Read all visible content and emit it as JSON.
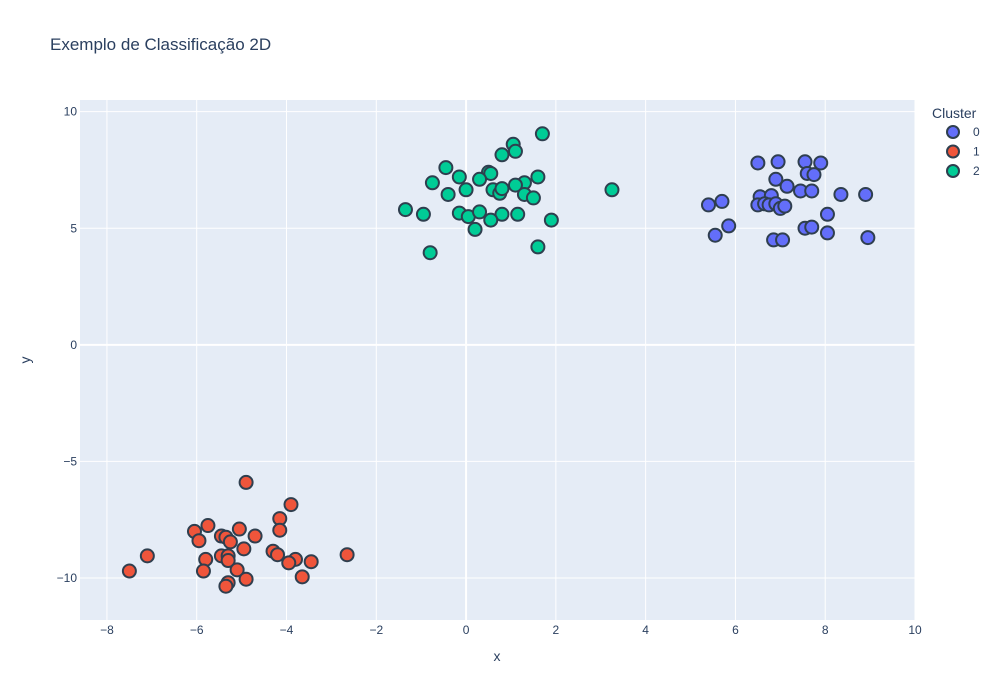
{
  "chart_data": {
    "type": "scatter",
    "title": "Exemplo de Classificação 2D",
    "xlabel": "x",
    "ylabel": "y",
    "xlim": [
      -8.6,
      10
    ],
    "ylim": [
      -11.8,
      10.5
    ],
    "xticks": [
      -8,
      -6,
      -4,
      -2,
      0,
      2,
      4,
      6,
      8,
      10
    ],
    "yticks": [
      -10,
      -5,
      0,
      5,
      10
    ],
    "xtick_labels": [
      "−8",
      "−6",
      "−4",
      "−2",
      "0",
      "2",
      "4",
      "6",
      "8",
      "10"
    ],
    "ytick_labels": [
      "−10",
      "−5",
      "0",
      "5",
      "10"
    ],
    "grid": true,
    "legend": {
      "title": "Cluster",
      "placement": "top-right"
    },
    "series": [
      {
        "name": "0",
        "color": "#636efa",
        "points": [
          [
            6.5,
            7.8
          ],
          [
            6.95,
            7.85
          ],
          [
            7.55,
            7.85
          ],
          [
            7.9,
            7.8
          ],
          [
            7.6,
            7.35
          ],
          [
            7.75,
            7.3
          ],
          [
            6.9,
            7.1
          ],
          [
            7.15,
            6.8
          ],
          [
            7.45,
            6.6
          ],
          [
            7.7,
            6.6
          ],
          [
            6.55,
            6.35
          ],
          [
            6.8,
            6.4
          ],
          [
            8.35,
            6.45
          ],
          [
            8.9,
            6.45
          ],
          [
            5.4,
            6.0
          ],
          [
            5.7,
            6.15
          ],
          [
            6.5,
            6.0
          ],
          [
            6.65,
            6.05
          ],
          [
            6.75,
            6.0
          ],
          [
            6.9,
            6.05
          ],
          [
            7.0,
            5.85
          ],
          [
            7.1,
            5.95
          ],
          [
            8.05,
            5.6
          ],
          [
            5.85,
            5.1
          ],
          [
            7.55,
            5.0
          ],
          [
            7.7,
            5.05
          ],
          [
            5.55,
            4.7
          ],
          [
            8.05,
            4.8
          ],
          [
            6.85,
            4.5
          ],
          [
            7.05,
            4.5
          ],
          [
            8.95,
            4.6
          ]
        ]
      },
      {
        "name": "1",
        "color": "#ef553b",
        "points": [
          [
            -4.9,
            -5.9
          ],
          [
            -3.9,
            -6.85
          ],
          [
            -4.15,
            -7.45
          ],
          [
            -6.05,
            -8.0
          ],
          [
            -5.75,
            -7.75
          ],
          [
            -5.05,
            -7.9
          ],
          [
            -4.15,
            -7.95
          ],
          [
            -5.95,
            -8.4
          ],
          [
            -5.45,
            -8.2
          ],
          [
            -5.35,
            -8.25
          ],
          [
            -5.25,
            -8.45
          ],
          [
            -4.7,
            -8.2
          ],
          [
            -4.95,
            -8.75
          ],
          [
            -4.3,
            -8.85
          ],
          [
            -4.2,
            -9.0
          ],
          [
            -5.45,
            -9.05
          ],
          [
            -5.3,
            -9.05
          ],
          [
            -5.8,
            -9.2
          ],
          [
            -5.3,
            -9.25
          ],
          [
            -3.8,
            -9.2
          ],
          [
            -3.95,
            -9.35
          ],
          [
            -3.45,
            -9.3
          ],
          [
            -2.65,
            -9.0
          ],
          [
            -7.1,
            -9.05
          ],
          [
            -7.5,
            -9.7
          ],
          [
            -5.85,
            -9.7
          ],
          [
            -5.1,
            -9.65
          ],
          [
            -4.9,
            -10.05
          ],
          [
            -3.65,
            -9.95
          ],
          [
            -5.3,
            -10.2
          ],
          [
            -5.35,
            -10.35
          ]
        ]
      },
      {
        "name": "2",
        "color": "#00cc96",
        "points": [
          [
            1.7,
            9.05
          ],
          [
            1.05,
            8.6
          ],
          [
            1.1,
            8.3
          ],
          [
            0.8,
            8.15
          ],
          [
            -0.45,
            7.6
          ],
          [
            0.5,
            7.4
          ],
          [
            0.55,
            7.35
          ],
          [
            -0.15,
            7.2
          ],
          [
            0.3,
            7.1
          ],
          [
            1.6,
            7.2
          ],
          [
            -0.75,
            6.95
          ],
          [
            1.3,
            6.95
          ],
          [
            1.1,
            6.85
          ],
          [
            0.6,
            6.65
          ],
          [
            0.0,
            6.65
          ],
          [
            0.75,
            6.5
          ],
          [
            0.8,
            6.7
          ],
          [
            -0.4,
            6.45
          ],
          [
            1.3,
            6.45
          ],
          [
            1.5,
            6.3
          ],
          [
            3.25,
            6.65
          ],
          [
            -1.35,
            5.8
          ],
          [
            -0.95,
            5.6
          ],
          [
            -0.15,
            5.65
          ],
          [
            0.05,
            5.5
          ],
          [
            0.3,
            5.7
          ],
          [
            0.8,
            5.6
          ],
          [
            1.15,
            5.6
          ],
          [
            0.55,
            5.35
          ],
          [
            1.9,
            5.35
          ],
          [
            0.2,
            4.95
          ],
          [
            1.6,
            4.2
          ],
          [
            -0.8,
            3.95
          ]
        ]
      }
    ]
  }
}
